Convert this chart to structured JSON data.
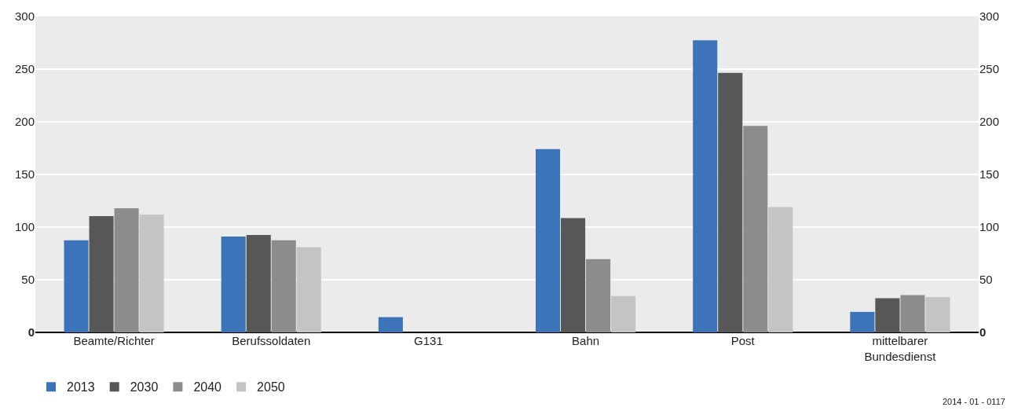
{
  "chart_data": {
    "type": "bar",
    "categories": [
      "Beamte/Richter",
      "Berufssoldaten",
      "G131",
      "Bahn",
      "Post",
      "mittelbarer\nBundesdienst"
    ],
    "series": [
      {
        "name": "2013",
        "color": "#3c73b9",
        "values": [
          87.5,
          91,
          14.5,
          174,
          277.5,
          19.5
        ]
      },
      {
        "name": "2030",
        "color": "#575757",
        "values": [
          110.5,
          92.5,
          0,
          108.5,
          246.5,
          32.5
        ]
      },
      {
        "name": "2040",
        "color": "#8c8c8c",
        "values": [
          118,
          87.5,
          0,
          69.5,
          196,
          35.5
        ]
      },
      {
        "name": "2050",
        "color": "#c4c4c4",
        "values": [
          112,
          81,
          0,
          34.5,
          119,
          33.5
        ]
      }
    ],
    "ylim": [
      0,
      300
    ],
    "yticks": [
      0,
      50,
      100,
      150,
      200,
      250,
      300
    ],
    "y2lim": [
      0,
      300
    ],
    "y2ticks": [
      0,
      50,
      100,
      150,
      200,
      250,
      300
    ],
    "grid": "y",
    "legend": "bottom left",
    "annotations": [
      "2014 - 01 - 0117"
    ]
  }
}
